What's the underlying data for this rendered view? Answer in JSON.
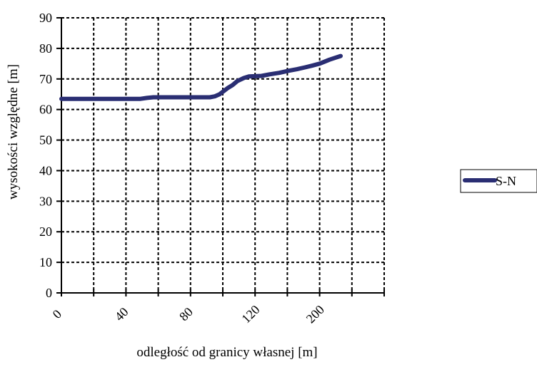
{
  "chart_data": {
    "type": "line",
    "title": "",
    "xlabel": "odległość od granicy własnej [m]",
    "ylabel": "wysokości względne [m]",
    "ylim": [
      0,
      90
    ],
    "y_ticks": [
      0,
      10,
      20,
      30,
      40,
      50,
      60,
      70,
      80,
      90
    ],
    "x_tick_labels": [
      "0",
      "40",
      "80",
      "120",
      "200"
    ],
    "x_categories": 20,
    "grid": true,
    "legend_position": "right",
    "series": [
      {
        "name": "S-N",
        "color": "#2a2e73",
        "points": [
          [
            0,
            63.5
          ],
          [
            4.9,
            63.5
          ],
          [
            5.3,
            63.8
          ],
          [
            5.7,
            64.0
          ],
          [
            9.2,
            64.0
          ],
          [
            9.5,
            64.3
          ],
          [
            9.8,
            65.0
          ],
          [
            10.3,
            67.0
          ],
          [
            10.6,
            68.0
          ],
          [
            10.9,
            69.3
          ],
          [
            11.3,
            70.3
          ],
          [
            11.6,
            70.8
          ],
          [
            12.4,
            71.0
          ],
          [
            12.9,
            71.5
          ],
          [
            13.5,
            72.0
          ],
          [
            14.1,
            72.7
          ],
          [
            14.6,
            73.2
          ],
          [
            15.1,
            73.8
          ],
          [
            15.5,
            74.3
          ],
          [
            16.0,
            75.0
          ],
          [
            16.6,
            76.3
          ],
          [
            17.0,
            77.0
          ],
          [
            17.3,
            77.5
          ]
        ]
      }
    ]
  }
}
